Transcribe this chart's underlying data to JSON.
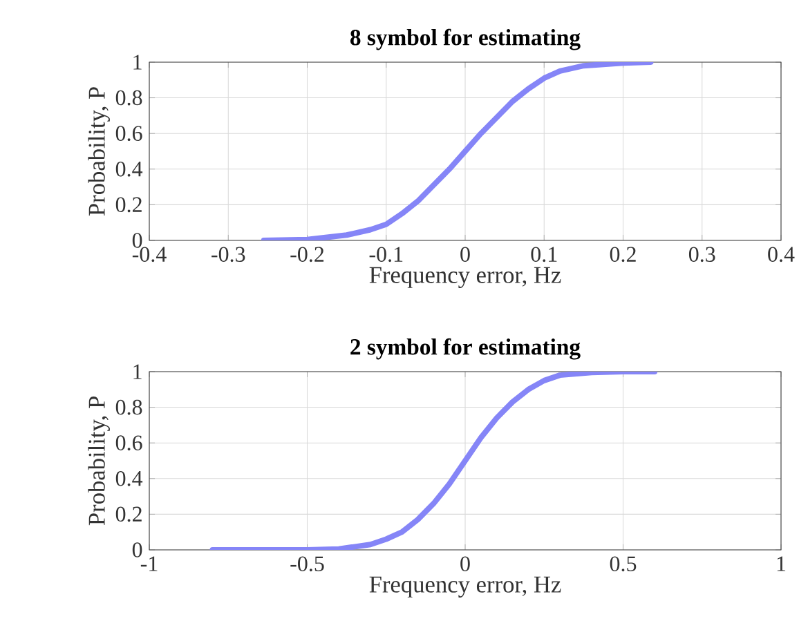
{
  "chart_data": [
    {
      "type": "line",
      "title": "8 symbol for estimating",
      "xlabel": "Frequency error, Hz",
      "ylabel": "Probability, P",
      "xlim": [
        -0.4,
        0.4
      ],
      "ylim": [
        0,
        1
      ],
      "xticks": [
        -0.4,
        -0.3,
        -0.2,
        -0.1,
        0,
        0.1,
        0.2,
        0.3,
        0.4
      ],
      "yticks": [
        0,
        0.2,
        0.4,
        0.6,
        0.8,
        1
      ],
      "grid": true,
      "series": [
        {
          "color": "#8585f7",
          "x": [
            -0.255,
            -0.2,
            -0.15,
            -0.12,
            -0.1,
            -0.08,
            -0.06,
            -0.04,
            -0.02,
            0,
            0.02,
            0.04,
            0.06,
            0.08,
            0.1,
            0.12,
            0.15,
            0.2,
            0.235
          ],
          "values": [
            0,
            0.005,
            0.03,
            0.06,
            0.09,
            0.15,
            0.22,
            0.31,
            0.4,
            0.5,
            0.6,
            0.69,
            0.78,
            0.85,
            0.91,
            0.95,
            0.98,
            0.995,
            1
          ]
        }
      ]
    },
    {
      "type": "line",
      "title": "2 symbol for estimating",
      "xlabel": "Frequency error, Hz",
      "ylabel": "Probability, P",
      "xlim": [
        -1,
        1
      ],
      "ylim": [
        0,
        1
      ],
      "xticks": [
        -1,
        -0.5,
        0,
        0.5,
        1
      ],
      "yticks": [
        0,
        0.2,
        0.4,
        0.6,
        0.8,
        1
      ],
      "grid": true,
      "series": [
        {
          "color": "#8585f7",
          "x": [
            -0.8,
            -0.5,
            -0.4,
            -0.3,
            -0.25,
            -0.2,
            -0.15,
            -0.1,
            -0.05,
            0,
            0.05,
            0.1,
            0.15,
            0.2,
            0.25,
            0.3,
            0.4,
            0.5,
            0.6
          ],
          "values": [
            0,
            0,
            0.005,
            0.03,
            0.06,
            0.1,
            0.17,
            0.26,
            0.37,
            0.5,
            0.63,
            0.74,
            0.83,
            0.9,
            0.95,
            0.98,
            0.995,
            1,
            1
          ]
        }
      ]
    }
  ]
}
